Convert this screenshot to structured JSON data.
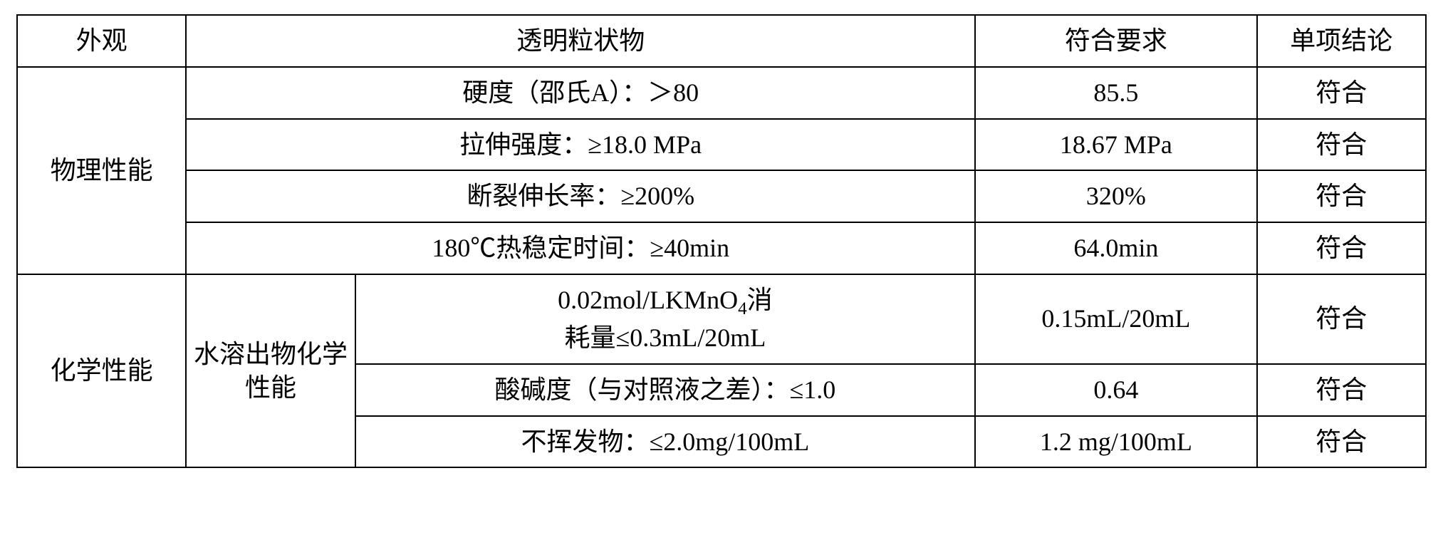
{
  "table": {
    "border_color": "#000000",
    "background_color": "#ffffff",
    "text_color": "#000000",
    "font_family": "KaiTi",
    "font_size": 36,
    "header_row": {
      "col1": "外观",
      "col2_merged": "透明粒状物",
      "col4": "符合要求",
      "col5": "单项结论"
    },
    "physical_section": {
      "label": "物理性能",
      "rows": [
        {
          "spec": "硬度（邵氏A）：＞80",
          "value": "85.5",
          "result": "符合"
        },
        {
          "spec": "拉伸强度：≥18.0 MPa",
          "value": "18.67 MPa",
          "result": "符合"
        },
        {
          "spec": "断裂伸长率：≥200%",
          "value": "320%",
          "result": "符合"
        },
        {
          "spec": "180℃热稳定时间：≥40min",
          "value": "64.0min",
          "result": "符合"
        }
      ]
    },
    "chemical_section": {
      "label": "化学性能",
      "sublabel": "水溶出物化学性能",
      "rows": [
        {
          "spec_line1": "0.02mol/LKMnO₄消",
          "spec_line2": "耗量≤0.3mL/20mL",
          "value": "0.15mL/20mL",
          "result": "符合"
        },
        {
          "spec": "酸碱度（与对照液之差）：≤1.0",
          "value": "0.64",
          "result": "符合"
        },
        {
          "spec": "不挥发物：≤2.0mg/100mL",
          "value": "1.2 mg/100mL",
          "result": "符合"
        }
      ]
    }
  }
}
